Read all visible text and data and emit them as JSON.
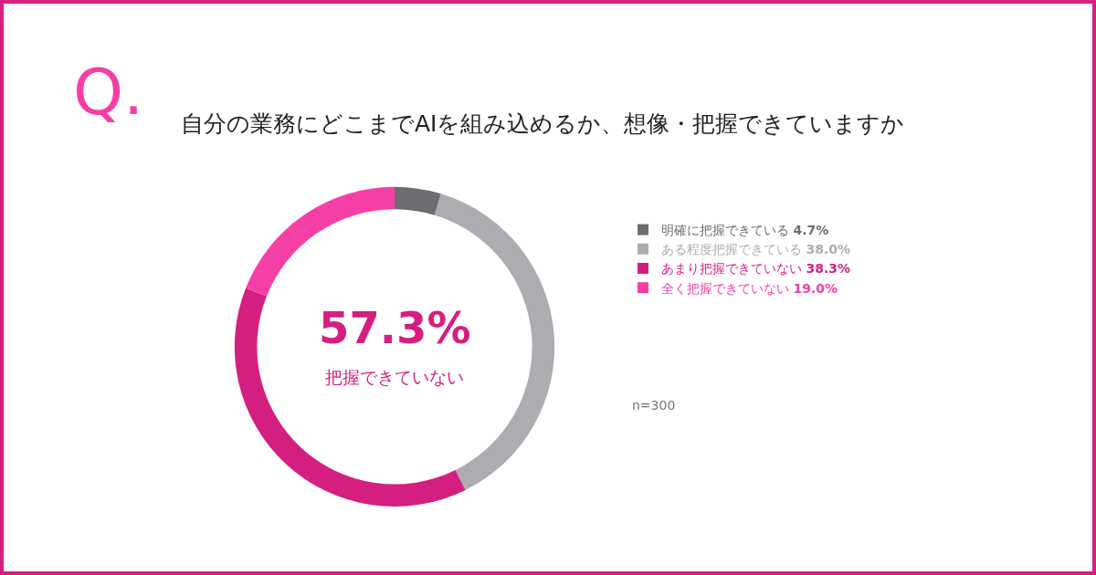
{
  "chart_data": {
    "type": "donut",
    "title": "自分の業務にどこまでAIを組み込めるか、想像・把握できていますか",
    "categories": [
      "明確に把握できている",
      "ある程度把握できている",
      "あまり把握できていない",
      "全く把握できていない"
    ],
    "values": [
      4.7,
      38.0,
      38.3,
      19.0
    ],
    "value_labels": [
      "4.7%",
      "38.0%",
      "38.3%",
      "19.0%"
    ],
    "colors": [
      "#6e6c70",
      "#aeacb0",
      "#d41f80",
      "#f53fa6"
    ],
    "legend": "right",
    "annotations": [
      "Q.",
      "57.3%",
      "把握できていない",
      "n=300"
    ]
  }
}
